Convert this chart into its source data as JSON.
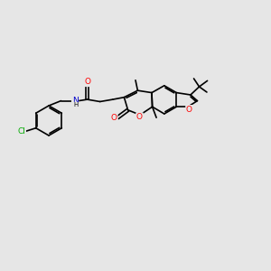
{
  "background_color": "#e6e6e6",
  "bond_color": "#000000",
  "bond_width": 1.2,
  "atom_colors": {
    "C": "#000000",
    "N": "#0000cc",
    "O": "#ff0000",
    "Cl": "#00aa00",
    "H": "#000000"
  },
  "font_size": 6.5
}
